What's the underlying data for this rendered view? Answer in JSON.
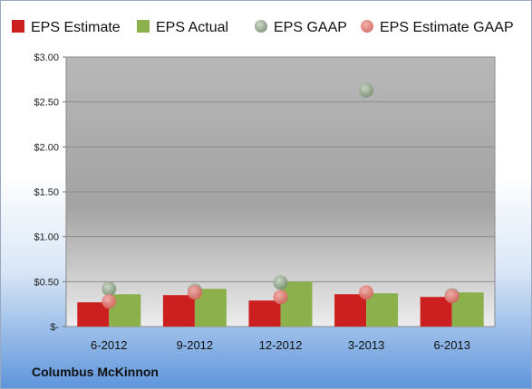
{
  "company": "Columbus McKinnon",
  "chart_data": {
    "type": "bar",
    "categories": [
      "6-2012",
      "9-2012",
      "12-2012",
      "3-2013",
      "6-2013"
    ],
    "series": [
      {
        "name": "EPS Estimate",
        "kind": "bar",
        "color": "#cc1f1f",
        "values": [
          0.27,
          0.35,
          0.29,
          0.36,
          0.33
        ]
      },
      {
        "name": "EPS Actual",
        "kind": "bar",
        "color": "#8cb04b",
        "values": [
          0.36,
          0.42,
          0.5,
          0.37,
          0.38
        ]
      },
      {
        "name": "EPS GAAP",
        "kind": "scatter",
        "color": "#8fa889",
        "values": [
          0.42,
          0.4,
          0.49,
          2.63,
          0.35
        ]
      },
      {
        "name": "EPS Estimate GAAP",
        "kind": "scatter",
        "color": "#e07a7a",
        "values": [
          0.28,
          0.38,
          0.33,
          0.38,
          0.34
        ]
      }
    ],
    "ylim": [
      0,
      3.0
    ],
    "yticks": [
      {
        "value": 0,
        "label": "$-"
      },
      {
        "value": 0.5,
        "label": "$0.50"
      },
      {
        "value": 1.0,
        "label": "$1.00"
      },
      {
        "value": 1.5,
        "label": "$1.50"
      },
      {
        "value": 2.0,
        "label": "$2.00"
      },
      {
        "value": 2.5,
        "label": "$2.50"
      },
      {
        "value": 3.0,
        "label": "$3.00"
      }
    ],
    "grid": true,
    "legend_position": "top"
  }
}
